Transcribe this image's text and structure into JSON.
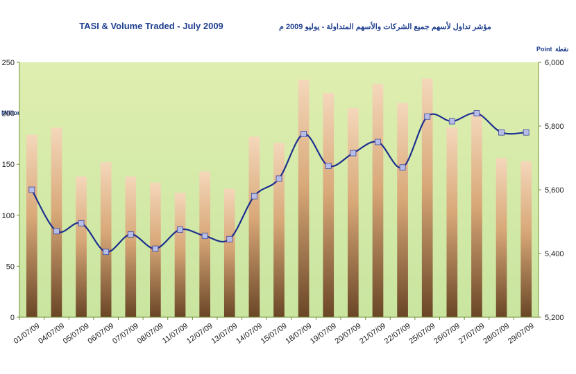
{
  "titles": {
    "english": "TASI & Volume Traded - July 2009",
    "arabic": "مؤشر تداول لأسهم جميع الشركات والأسهم المتداولة - يوليو 2009 م"
  },
  "axis_units": {
    "left": "Million Shares",
    "right_en": "Point",
    "right_ar": "نقطة"
  },
  "colors": {
    "background_top": "#dfeeb0",
    "background_bottom": "#c9e5a0",
    "bar_light": "#f4d7ba",
    "bar_mid": "#d8a878",
    "bar_dark": "#6a4626",
    "line": "#1c2f8f",
    "marker": "#b8bde8",
    "axis": "#6f8f2f"
  },
  "chart_data": {
    "type": "bar",
    "title": "TASI & Volume Traded - July 2009",
    "categories": [
      "01/07/09",
      "04/07/09",
      "05/07/09",
      "06/07/09",
      "07/07/09",
      "08/07/09",
      "11/07/09",
      "12/07/09",
      "13/07/09",
      "14/07/09",
      "15/07/09",
      "18/07/09",
      "19/07/09",
      "20/07/09",
      "21/07/09",
      "22/07/09",
      "25/07/09",
      "26/07/09",
      "27/07/09",
      "28/07/09",
      "29/07/09"
    ],
    "series": [
      {
        "name": "Million Shares",
        "type": "bar",
        "axis": "left",
        "values": [
          179,
          186,
          138,
          152,
          138,
          132,
          122,
          143,
          126,
          177,
          171,
          233,
          220,
          205,
          229,
          210,
          234,
          186,
          200,
          156,
          153
        ]
      },
      {
        "name": "Point",
        "type": "line",
        "axis": "right",
        "values": [
          5600,
          5470,
          5495,
          5405,
          5460,
          5415,
          5475,
          5455,
          5445,
          5580,
          5635,
          5775,
          5675,
          5715,
          5750,
          5670,
          5830,
          5815,
          5840,
          5780,
          5780
        ]
      }
    ],
    "ylim_left": [
      0,
      250
    ],
    "yticks_left": [
      "0",
      "50",
      "100",
      "150",
      "200",
      "250"
    ],
    "ylim_right": [
      5200,
      6000
    ],
    "yticks_right": [
      "5,200",
      "5,400",
      "5,600",
      "5,800",
      "6,000"
    ],
    "grid": false,
    "legend": "none"
  }
}
